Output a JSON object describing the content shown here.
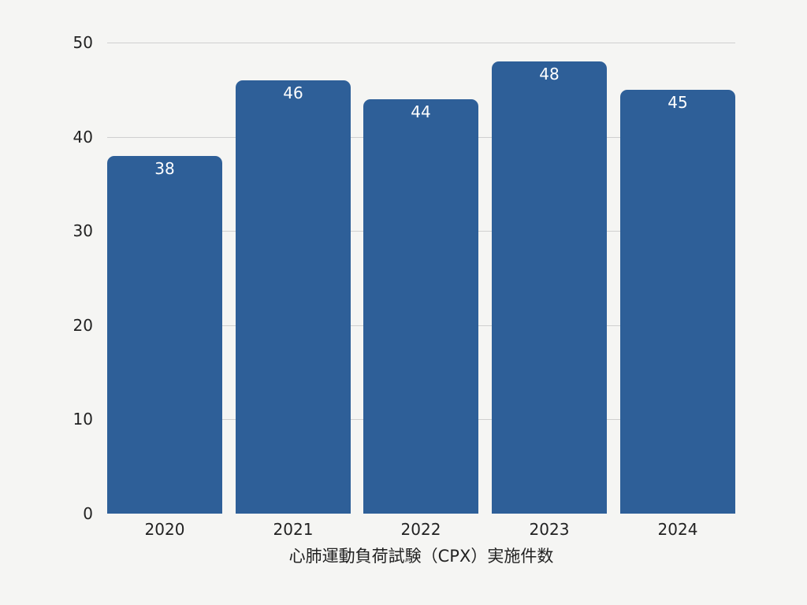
{
  "chart_data": {
    "type": "bar",
    "title": "",
    "categories": [
      "2020",
      "2021",
      "2022",
      "2023",
      "2024"
    ],
    "values": [
      38,
      46,
      44,
      48,
      45
    ],
    "xlabel": "心肺運動負荷試験（CPX）実施件数",
    "ylabel": "",
    "ylim": [
      0,
      50
    ],
    "yticks": [
      "0",
      "10",
      "20",
      "30",
      "40",
      "50"
    ],
    "grid": true,
    "data_labels": [
      "38",
      "46",
      "44",
      "48",
      "45"
    ],
    "bar_color": "#2e5f98",
    "background": "#f5f5f3"
  }
}
